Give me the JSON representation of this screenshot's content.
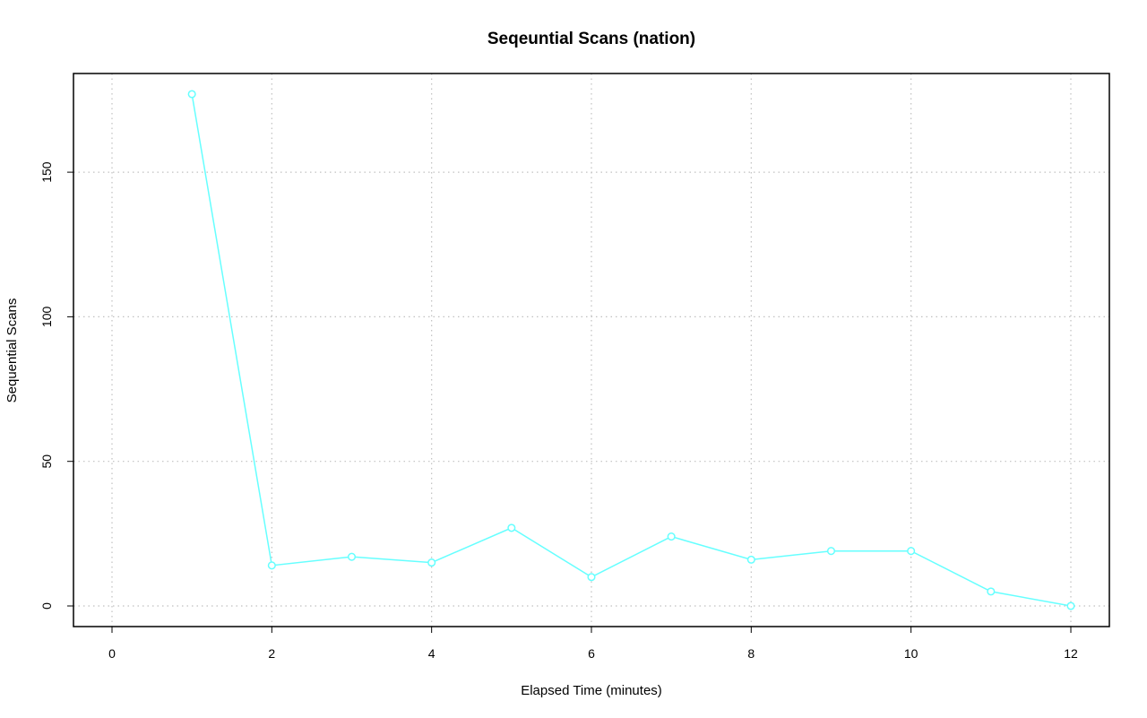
{
  "chart_data": {
    "type": "line",
    "title": "Seqeuntial Scans (nation)",
    "xlabel": "Elapsed Time (minutes)",
    "ylabel": "Sequential Scans",
    "xlim": [
      0,
      12
    ],
    "ylim": [
      0,
      177
    ],
    "x_ticks": [
      0,
      2,
      4,
      6,
      8,
      10,
      12
    ],
    "y_ticks": [
      0,
      50,
      100,
      150
    ],
    "grid": true,
    "series": [
      {
        "color": "#66ffff",
        "marker": "open-circle",
        "x": [
          1,
          2,
          3,
          4,
          5,
          6,
          7,
          8,
          9,
          10,
          11,
          12
        ],
        "y": [
          177,
          14,
          17,
          15,
          27,
          10,
          24,
          16,
          19,
          19,
          5,
          0
        ]
      }
    ]
  }
}
